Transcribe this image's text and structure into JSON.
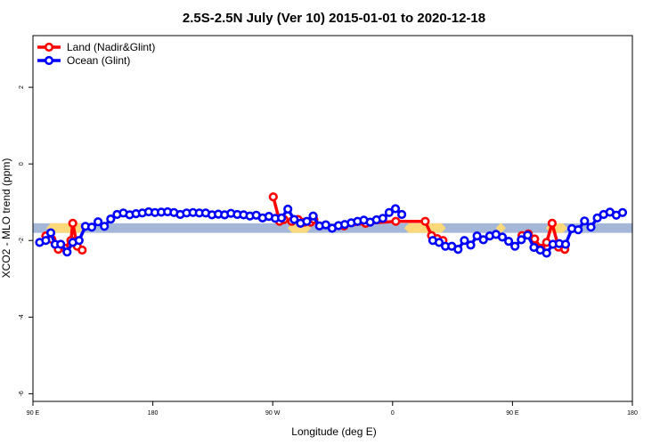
{
  "chart_data": {
    "type": "line",
    "title": "2.5S-2.5N July (Ver 10)   2015-01-01 to 2020-12-18",
    "xlabel": "Longitude (deg E)",
    "ylabel": "XCO2 - MLO trend (ppm)",
    "xlim": [
      90,
      450
    ],
    "ylim": [
      -6.2,
      3.35
    ],
    "x_ticks": [
      {
        "value": 90,
        "label": "90 E"
      },
      {
        "value": 162,
        "label": "180"
      },
      {
        "value": 234,
        "label": "90 W"
      },
      {
        "value": 306,
        "label": "0"
      },
      {
        "value": 378,
        "label": "90 E"
      },
      {
        "value": 450,
        "label": "180"
      }
    ],
    "y_ticks": [
      {
        "value": 2,
        "label": "2"
      },
      {
        "value": 0,
        "label": "0"
      },
      {
        "value": -2,
        "label": "-2"
      },
      {
        "value": -4,
        "label": "-4"
      },
      {
        "value": -6,
        "label": "-6"
      }
    ],
    "land_bands": [
      {
        "x0": 98,
        "x1": 121,
        "y0": -1.55,
        "y1": -1.8
      },
      {
        "x0": 243,
        "x1": 257,
        "y0": -1.55,
        "y1": -1.8
      },
      {
        "x0": 313,
        "x1": 338,
        "y0": -1.55,
        "y1": -1.8
      },
      {
        "x0": 368,
        "x1": 374,
        "y0": -1.55,
        "y1": -1.8
      },
      {
        "x0": 398,
        "x1": 411,
        "y0": -1.55,
        "y1": -1.8
      }
    ],
    "reference_band": {
      "y0": -1.55,
      "y1": -1.8
    },
    "legend": {
      "position": "top-left"
    },
    "series": [
      {
        "name": "Land (Nadir&Glint)",
        "color": "#ff0000",
        "segments": [
          [
            [
              97.7,
              -1.88
            ],
            [
              101.4,
              -1.97
            ],
            [
              105.2,
              -2.23
            ],
            [
              109.0,
              -2.2
            ],
            [
              112.8,
              -2.0
            ],
            [
              113.9,
              -1.55
            ],
            [
              116.6,
              -2.15
            ],
            [
              119.6,
              -2.25
            ]
          ],
          [
            [
              234.3,
              -0.86
            ],
            [
              238.1,
              -1.5
            ],
            [
              240.8,
              -1.45
            ],
            [
              245.4,
              -1.5
            ],
            [
              249.2,
              -1.45
            ],
            [
              253.0,
              -1.52
            ],
            [
              256.8,
              -1.52
            ],
            [
              258.7,
              -1.45
            ]
          ],
          [
            [
              276.8,
              -1.62
            ],
            [
              289.8,
              -1.55
            ],
            [
              307.9,
              -1.5
            ],
            [
              325.6,
              -1.5
            ],
            [
              329.4,
              -1.87
            ],
            [
              332.8,
              -1.95
            ],
            [
              336.2,
              -2.0
            ]
          ],
          [
            [
              383.7,
              -1.87
            ],
            [
              387.5,
              -1.83
            ],
            [
              391.3,
              -1.96
            ],
            [
              395.1,
              -2.2
            ],
            [
              398.5,
              -2.05
            ],
            [
              401.8,
              -1.55
            ],
            [
              405.6,
              -2.17
            ],
            [
              409.4,
              -2.23
            ]
          ]
        ]
      },
      {
        "name": "Ocean (Glint)",
        "color": "#0000ff",
        "segments": [
          [
            [
              94.0,
              -2.05
            ],
            [
              97.7,
              -2.0
            ],
            [
              100.7,
              -1.8
            ],
            [
              103.3,
              -2.1
            ],
            [
              106.7,
              -2.1
            ],
            [
              110.5,
              -2.3
            ],
            [
              113.9,
              -2.05
            ],
            [
              117.7,
              -2.0
            ],
            [
              121.5,
              -1.63
            ],
            [
              125.3,
              -1.65
            ],
            [
              129.1,
              -1.51
            ],
            [
              132.9,
              -1.63
            ],
            [
              136.7,
              -1.44
            ],
            [
              140.5,
              -1.32
            ],
            [
              144.3,
              -1.28
            ],
            [
              148.1,
              -1.33
            ],
            [
              151.9,
              -1.3
            ],
            [
              155.7,
              -1.28
            ],
            [
              159.5,
              -1.25
            ],
            [
              163.3,
              -1.27
            ],
            [
              167.1,
              -1.26
            ],
            [
              170.9,
              -1.25
            ],
            [
              174.7,
              -1.27
            ],
            [
              178.5,
              -1.32
            ],
            [
              182.3,
              -1.28
            ],
            [
              186.1,
              -1.27
            ],
            [
              189.9,
              -1.28
            ],
            [
              193.7,
              -1.28
            ],
            [
              197.5,
              -1.33
            ],
            [
              201.3,
              -1.31
            ],
            [
              205.1,
              -1.33
            ],
            [
              208.9,
              -1.29
            ],
            [
              212.7,
              -1.32
            ],
            [
              216.5,
              -1.33
            ],
            [
              220.3,
              -1.36
            ],
            [
              224.1,
              -1.34
            ],
            [
              227.9,
              -1.41
            ],
            [
              231.7,
              -1.37
            ],
            [
              235.5,
              -1.42
            ],
            [
              239.3,
              -1.41
            ],
            [
              243.1,
              -1.18
            ],
            [
              246.9,
              -1.45
            ],
            [
              250.7,
              -1.55
            ],
            [
              254.5,
              -1.5
            ],
            [
              258.3,
              -1.36
            ],
            [
              262.1,
              -1.62
            ],
            [
              265.9,
              -1.59
            ],
            [
              269.7,
              -1.68
            ],
            [
              273.5,
              -1.61
            ],
            [
              277.3,
              -1.58
            ],
            [
              281.1,
              -1.54
            ],
            [
              284.9,
              -1.5
            ],
            [
              288.7,
              -1.47
            ],
            [
              292.5,
              -1.52
            ],
            [
              296.3,
              -1.46
            ],
            [
              300.1,
              -1.42
            ],
            [
              303.9,
              -1.27
            ],
            [
              307.7,
              -1.17
            ],
            [
              311.5,
              -1.32
            ]
          ],
          [
            [
              330.1,
              -2.0
            ],
            [
              333.9,
              -2.05
            ],
            [
              337.7,
              -2.15
            ],
            [
              341.5,
              -2.15
            ],
            [
              345.3,
              -2.23
            ],
            [
              349.1,
              -2.0
            ],
            [
              352.9,
              -2.12
            ],
            [
              356.7,
              -1.88
            ],
            [
              360.5,
              -1.98
            ],
            [
              364.3,
              -1.88
            ],
            [
              368.1,
              -1.84
            ],
            [
              371.9,
              -1.91
            ],
            [
              375.7,
              -2.02
            ],
            [
              379.5,
              -2.15
            ],
            [
              383.3,
              -1.98
            ],
            [
              387.1,
              -1.86
            ],
            [
              390.9,
              -2.18
            ],
            [
              394.7,
              -2.25
            ],
            [
              398.5,
              -2.33
            ],
            [
              402.3,
              -2.1
            ],
            [
              406.1,
              -2.08
            ],
            [
              409.9,
              -2.1
            ],
            [
              413.7,
              -1.69
            ],
            [
              417.5,
              -1.72
            ],
            [
              421.3,
              -1.49
            ],
            [
              425.1,
              -1.65
            ],
            [
              428.9,
              -1.41
            ],
            [
              432.7,
              -1.32
            ],
            [
              436.5,
              -1.26
            ],
            [
              440.3,
              -1.34
            ],
            [
              444.1,
              -1.27
            ]
          ]
        ]
      }
    ]
  }
}
